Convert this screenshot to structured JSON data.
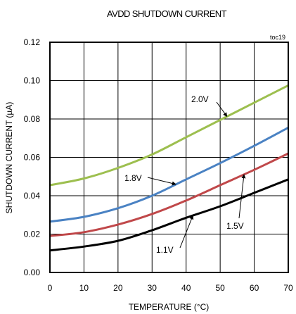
{
  "chart_data": {
    "type": "line",
    "title": "AVDD SHUTDOWN CURRENT",
    "note": "toc19",
    "xlabel": "TEMPERATURE (°C)",
    "ylabel": "SHUTDOWN CURRENT (µA)",
    "xlim": [
      0,
      70
    ],
    "ylim": [
      0,
      0.12
    ],
    "x_ticks": [
      "0",
      "10",
      "20",
      "30",
      "40",
      "50",
      "60",
      "70"
    ],
    "y_ticks": [
      "0.00",
      "0.02",
      "0.04",
      "0.06",
      "0.08",
      "0.10",
      "0.12"
    ],
    "grid": true,
    "x": [
      0,
      10,
      20,
      30,
      40,
      50,
      60,
      70
    ],
    "series": [
      {
        "name": "2.0V",
        "color": "#9dbf4f",
        "values": [
          0.0455,
          0.049,
          0.0545,
          0.0615,
          0.0705,
          0.0795,
          0.0885,
          0.0975
        ]
      },
      {
        "name": "1.8V",
        "color": "#4a82c3",
        "values": [
          0.0265,
          0.029,
          0.0335,
          0.04,
          0.0485,
          0.057,
          0.066,
          0.0755
        ]
      },
      {
        "name": "1.5V",
        "color": "#c0484a",
        "values": [
          0.019,
          0.021,
          0.025,
          0.0305,
          0.0375,
          0.0455,
          0.0535,
          0.062
        ]
      },
      {
        "name": "1.1V",
        "color": "#000000",
        "values": [
          0.0115,
          0.0135,
          0.0165,
          0.022,
          0.0285,
          0.0345,
          0.0415,
          0.0485
        ]
      }
    ]
  }
}
